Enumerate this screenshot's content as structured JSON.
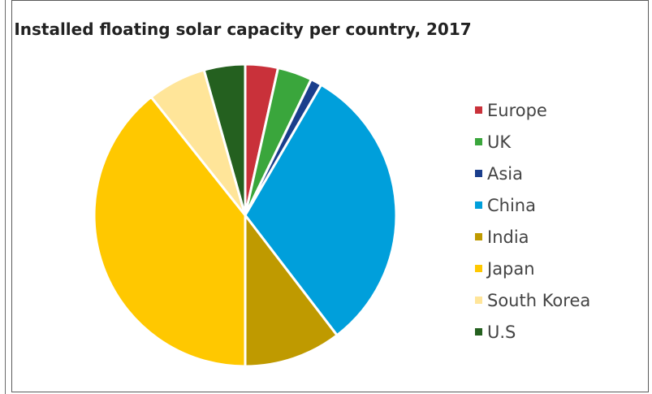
{
  "chart_data": {
    "type": "pie",
    "title": "Installed floating solar capacity per country, 2017",
    "series": [
      {
        "labels": [
          "Europe",
          "UK",
          "Asia",
          "China",
          "India",
          "Japan",
          "South Korea",
          "U.S"
        ],
        "values": [
          3.5,
          3.7,
          1.2,
          31.2,
          10.4,
          39.3,
          6.3,
          4.4
        ],
        "colors": [
          "#c9313a",
          "#3aa63c",
          "#1a3e8c",
          "#009fdb",
          "#bf9a00",
          "#ffc800",
          "#ffe599",
          "#24601f"
        ]
      }
    ],
    "legend_position": "right",
    "start_angle_deg": 0,
    "direction": "clockwise"
  }
}
